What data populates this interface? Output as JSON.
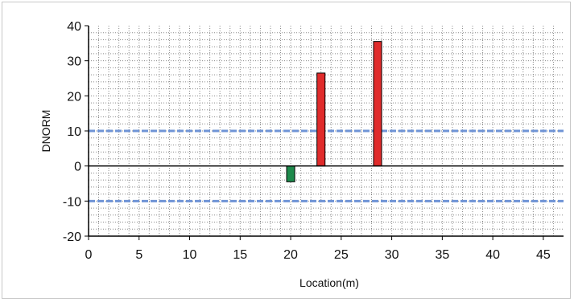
{
  "chart_data": {
    "type": "bar",
    "xlabel": "Location(m)",
    "ylabel": "DNORM",
    "xlim": [
      0,
      47
    ],
    "ylim": [
      -20,
      40
    ],
    "x_ticks": [
      0,
      5,
      10,
      15,
      20,
      25,
      30,
      35,
      40,
      45
    ],
    "y_ticks": [
      40,
      30,
      20,
      10,
      0,
      -10,
      -20
    ],
    "grid": "dotted",
    "threshold_lines": [
      10,
      -10
    ],
    "threshold_color": "#6f94d6",
    "bars": [
      {
        "x_start": 19.6,
        "x_end": 20.4,
        "value": -4.5,
        "color": "#1e8a4c"
      },
      {
        "x_start": 22.6,
        "x_end": 23.4,
        "value": 26.5,
        "color": "#e02b2b"
      },
      {
        "x_start": 28.2,
        "x_end": 29.0,
        "value": 35.5,
        "color": "#e02b2b"
      }
    ]
  }
}
